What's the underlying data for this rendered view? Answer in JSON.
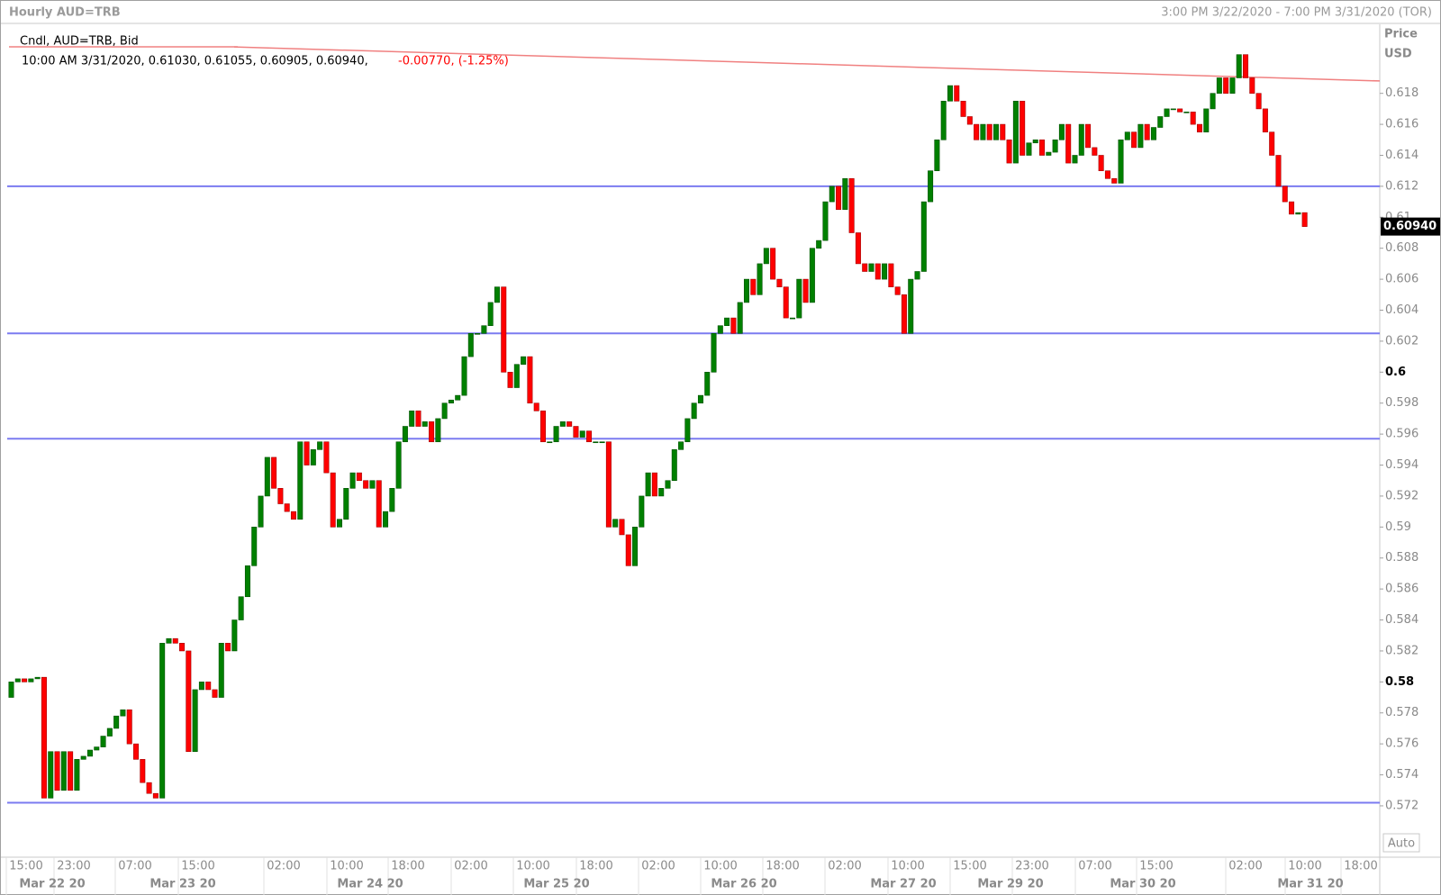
{
  "chart_data": {
    "type": "candlestick",
    "title": "Hourly AUD=TRB",
    "subtitle": "3:00 PM 3/22/2020 - 7:00 PM 3/31/2020 (TOR)",
    "legend": "Cndl, AUD=TRB, Bid",
    "ohlc_text": "10:00 AM 3/31/2020, 0.61030, 0.61055, 0.60905, 0.60940,",
    "change_text": "-0.00770, (-1.25%)",
    "y_label": "Price",
    "y_unit": "USD",
    "auto_label": "Auto",
    "up_color": "#008000",
    "down_color": "#ff0000",
    "hline_color": "#7b7bf0",
    "trend_color": "#f08080",
    "last_price": {
      "value": 0.6094,
      "label": "0.60940"
    },
    "ylim": [
      0.5688,
      0.6224
    ],
    "yticks": [
      0.572,
      0.574,
      0.576,
      0.578,
      0.58,
      0.582,
      0.584,
      0.586,
      0.588,
      0.59,
      0.592,
      0.594,
      0.596,
      0.598,
      0.6,
      0.602,
      0.604,
      0.606,
      0.608,
      0.61,
      0.612,
      0.614,
      0.616,
      0.618
    ],
    "hlines": [
      0.612,
      0.6025,
      0.5957,
      0.5722
    ],
    "trendline": [
      0.621,
      0.6188
    ],
    "time_labels": [
      "15:00",
      "23:00",
      "07:00",
      "15:00",
      "02:00",
      "10:00",
      "18:00",
      "02:00",
      "10:00",
      "18:00",
      "02:00",
      "10:00",
      "18:00",
      "02:00",
      "10:00",
      "15:00",
      "23:00",
      "07:00",
      "15:00",
      "02:00",
      "10:00",
      "18:00"
    ],
    "date_labels": [
      "Mar 22 20",
      "Mar 23 20",
      "Mar 24 20",
      "Mar 25 20",
      "Mar 26 20",
      "Mar 27 20",
      "Mar 29 20",
      "Mar 30 20",
      "Mar 31 20"
    ],
    "open": [
      0.579,
      0.58,
      0.5802,
      0.58,
      0.5802,
      0.5803,
      0.5725,
      0.5755,
      0.573,
      0.5755,
      0.573,
      0.575,
      0.5752,
      0.5756,
      0.5758,
      0.5765,
      0.577,
      0.5778,
      0.5782,
      0.576,
      0.575,
      0.5735,
      0.5728,
      0.5725,
      0.5825,
      0.5828,
      0.5825,
      0.582,
      0.5755,
      0.5795,
      0.58,
      0.5795,
      0.579,
      0.5825,
      0.582,
      0.584,
      0.5855,
      0.5875,
      0.59,
      0.592,
      0.5945,
      0.5925,
      0.5915,
      0.591,
      0.5905,
      0.5955,
      0.594,
      0.595,
      0.5955,
      0.5935,
      0.59,
      0.5905,
      0.5925,
      0.5935,
      0.593,
      0.5925,
      0.593,
      0.59,
      0.591,
      0.5925,
      0.5955,
      0.5965,
      0.5975,
      0.5965,
      0.5968,
      0.5955,
      0.597,
      0.598,
      0.5982,
      0.5985,
      0.601,
      0.6025,
      0.6025,
      0.603,
      0.6045,
      0.6055,
      0.6,
      0.599,
      0.6005,
      0.601,
      0.598,
      0.5975,
      0.5955,
      0.5955,
      0.5965,
      0.5968,
      0.5965,
      0.5958,
      0.5962,
      0.5955,
      0.5955,
      0.5955,
      0.59,
      0.5905,
      0.5895,
      0.5875,
      0.59,
      0.592,
      0.5935,
      0.592,
      0.5925,
      0.593,
      0.595,
      0.5955,
      0.597,
      0.598,
      0.5985,
      0.6,
      0.6025,
      0.603,
      0.6035,
      0.6025,
      0.6045,
      0.606,
      0.605,
      0.607,
      0.608,
      0.606,
      0.6055,
      0.6035,
      0.6035,
      0.606,
      0.6045,
      0.608,
      0.6085,
      0.611,
      0.612,
      0.6105,
      0.6125,
      0.609,
      0.607,
      0.6065,
      0.607,
      0.606,
      0.607,
      0.6055,
      0.605,
      0.6025,
      0.606,
      0.6065,
      0.611,
      0.613,
      0.615,
      0.6175,
      0.6185,
      0.6175,
      0.6165,
      0.616,
      0.615,
      0.616,
      0.615,
      0.616,
      0.615,
      0.6135,
      0.6175,
      0.614,
      0.6148,
      0.615,
      0.614,
      0.6142,
      0.615,
      0.616,
      0.6135,
      0.614,
      0.616,
      0.6145,
      0.614,
      0.613,
      0.6125,
      0.6122,
      0.615,
      0.6155,
      0.6145,
      0.616,
      0.615,
      0.6158,
      0.6165,
      0.617,
      0.617,
      0.6168,
      0.6168,
      0.616,
      0.6155,
      0.617,
      0.618,
      0.619,
      0.618,
      0.619,
      0.6205,
      0.619,
      0.618,
      0.617,
      0.6155,
      0.614,
      0.612,
      0.611,
      0.6102,
      0.6103
    ],
    "close": [
      0.58,
      0.5802,
      0.58,
      0.5802,
      0.5803,
      0.5725,
      0.5755,
      0.573,
      0.5755,
      0.573,
      0.575,
      0.5752,
      0.5756,
      0.5758,
      0.5765,
      0.577,
      0.5778,
      0.5782,
      0.576,
      0.575,
      0.5735,
      0.5728,
      0.5725,
      0.5825,
      0.5828,
      0.5825,
      0.582,
      0.5755,
      0.5795,
      0.58,
      0.5795,
      0.579,
      0.5825,
      0.582,
      0.584,
      0.5855,
      0.5875,
      0.59,
      0.592,
      0.5945,
      0.5925,
      0.5915,
      0.591,
      0.5905,
      0.5955,
      0.594,
      0.595,
      0.5955,
      0.5935,
      0.59,
      0.5905,
      0.5925,
      0.5935,
      0.593,
      0.5925,
      0.593,
      0.59,
      0.591,
      0.5925,
      0.5955,
      0.5965,
      0.5975,
      0.5965,
      0.5968,
      0.5955,
      0.597,
      0.598,
      0.5982,
      0.5985,
      0.601,
      0.6025,
      0.6025,
      0.603,
      0.6045,
      0.6055,
      0.6,
      0.599,
      0.6005,
      0.601,
      0.598,
      0.5975,
      0.5955,
      0.5955,
      0.5965,
      0.5968,
      0.5965,
      0.5958,
      0.5962,
      0.5955,
      0.5955,
      0.5955,
      0.59,
      0.5905,
      0.5895,
      0.5875,
      0.59,
      0.592,
      0.5935,
      0.592,
      0.5925,
      0.593,
      0.595,
      0.5955,
      0.597,
      0.598,
      0.5985,
      0.6,
      0.6025,
      0.603,
      0.6035,
      0.6025,
      0.6045,
      0.606,
      0.605,
      0.607,
      0.608,
      0.606,
      0.6055,
      0.6035,
      0.6035,
      0.606,
      0.6045,
      0.608,
      0.6085,
      0.611,
      0.612,
      0.6105,
      0.6125,
      0.609,
      0.607,
      0.6065,
      0.607,
      0.606,
      0.607,
      0.6055,
      0.605,
      0.6025,
      0.606,
      0.6065,
      0.611,
      0.613,
      0.615,
      0.6175,
      0.6185,
      0.6175,
      0.6165,
      0.616,
      0.615,
      0.616,
      0.615,
      0.616,
      0.615,
      0.6135,
      0.6175,
      0.614,
      0.6148,
      0.615,
      0.614,
      0.6142,
      0.615,
      0.616,
      0.6135,
      0.614,
      0.616,
      0.6145,
      0.614,
      0.613,
      0.6125,
      0.6122,
      0.615,
      0.6155,
      0.6145,
      0.616,
      0.615,
      0.6158,
      0.6165,
      0.617,
      0.617,
      0.6168,
      0.6168,
      0.616,
      0.6155,
      0.617,
      0.618,
      0.619,
      0.618,
      0.619,
      0.6205,
      0.619,
      0.618,
      0.617,
      0.6155,
      0.614,
      0.612,
      0.611,
      0.6102,
      0.6103,
      0.6094
    ]
  }
}
